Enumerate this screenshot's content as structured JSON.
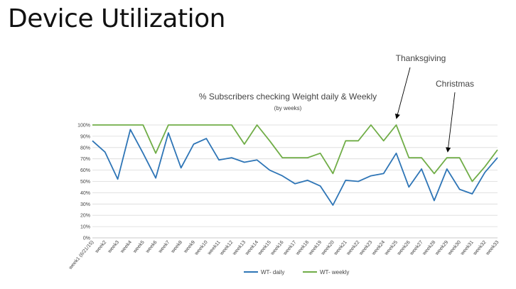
{
  "slide": {
    "title": "Device Utilization"
  },
  "annotations": [
    {
      "label": "Thanksgiving",
      "target_week": "week25",
      "color": "#1f4e79"
    },
    {
      "label": "Christmas",
      "target_week": "week29",
      "color": "#1f4e79"
    }
  ],
  "chart_data": {
    "type": "line",
    "title": "% Subscribers checking Weight daily & Weekly",
    "subtitle": "(by weeks)",
    "xlabel": "",
    "ylabel": "",
    "ylim": [
      0,
      100
    ],
    "y_ticks": [
      "0%",
      "10%",
      "20%",
      "30%",
      "40%",
      "50%",
      "60%",
      "70%",
      "80%",
      "90%",
      "100%"
    ],
    "grid": true,
    "legend_position": "bottom",
    "categories": [
      "week1 (6/21/15)",
      "week2",
      "week3",
      "week4",
      "week5",
      "week6",
      "week7",
      "week8",
      "week9",
      "week10",
      "week11",
      "week12",
      "week13",
      "week14",
      "week15",
      "week16",
      "week17",
      "week18",
      "week19",
      "week20",
      "week21",
      "week22",
      "week23",
      "week24",
      "week25",
      "week26",
      "week27",
      "week28",
      "week29",
      "week30",
      "week31",
      "week32",
      "week33"
    ],
    "series": [
      {
        "name": "WT- daily",
        "color": "#2e75b6",
        "values": [
          86,
          76,
          52,
          96,
          75,
          53,
          93,
          62,
          83,
          88,
          69,
          71,
          67,
          69,
          60,
          55,
          48,
          51,
          46,
          29,
          51,
          50,
          55,
          57,
          75,
          45,
          61,
          33,
          61,
          43,
          39,
          58,
          71
        ]
      },
      {
        "name": "WT- weekly",
        "color": "#70ad47",
        "values": [
          100,
          100,
          100,
          100,
          100,
          75,
          100,
          100,
          100,
          100,
          100,
          100,
          83,
          100,
          86,
          71,
          71,
          71,
          75,
          57,
          86,
          86,
          100,
          86,
          100,
          71,
          71,
          57,
          71,
          71,
          50,
          63,
          78
        ]
      }
    ]
  }
}
